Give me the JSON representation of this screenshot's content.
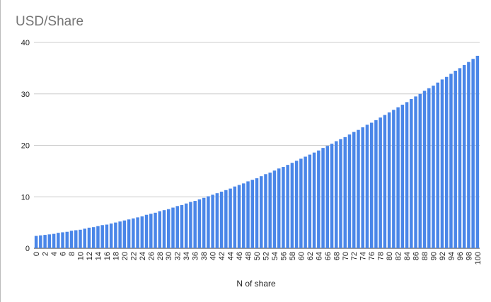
{
  "chart_data": {
    "type": "bar",
    "title": "USD/Share",
    "x_label": "N of share",
    "categories": [
      "0",
      null,
      "2",
      null,
      "4",
      null,
      "6",
      null,
      "8",
      null,
      "10",
      null,
      "12",
      null,
      "14",
      null,
      "16",
      null,
      "18",
      null,
      "20",
      null,
      "22",
      null,
      "24",
      null,
      "26",
      null,
      "28",
      null,
      "30",
      null,
      "32",
      null,
      "34",
      null,
      "36",
      null,
      "38",
      null,
      "40",
      null,
      "42",
      null,
      "44",
      null,
      "46",
      null,
      "48",
      null,
      "50",
      null,
      "52",
      null,
      "54",
      null,
      "56",
      null,
      "58",
      null,
      "60",
      null,
      "62",
      null,
      "64",
      null,
      "66",
      null,
      "68",
      null,
      "70",
      null,
      "72",
      null,
      "74",
      null,
      "76",
      null,
      "78",
      null,
      "80",
      null,
      "82",
      null,
      "84",
      null,
      "86",
      null,
      "88",
      null,
      "90",
      null,
      "92",
      null,
      "94",
      null,
      "96",
      null,
      "98",
      null,
      "100"
    ],
    "values": [
      2.4,
      2.5,
      2.6,
      2.7,
      2.8,
      3.0,
      3.1,
      3.2,
      3.4,
      3.5,
      3.6,
      3.8,
      4.0,
      4.1,
      4.3,
      4.5,
      4.6,
      4.8,
      5.0,
      5.2,
      5.4,
      5.6,
      5.8,
      6.0,
      6.2,
      6.5,
      6.7,
      6.9,
      7.2,
      7.4,
      7.6,
      7.9,
      8.2,
      8.4,
      8.7,
      9.0,
      9.2,
      9.5,
      9.8,
      10.1,
      10.4,
      10.7,
      11.0,
      11.3,
      11.6,
      12.0,
      12.3,
      12.6,
      13.0,
      13.3,
      13.6,
      14.0,
      14.4,
      14.7,
      15.1,
      15.5,
      15.8,
      16.2,
      16.6,
      17.0,
      17.4,
      17.8,
      18.2,
      18.6,
      19.0,
      19.5,
      19.9,
      20.3,
      20.8,
      21.2,
      21.6,
      22.1,
      22.6,
      23.0,
      23.5,
      24.0,
      24.4,
      24.9,
      25.4,
      25.9,
      26.4,
      26.9,
      27.4,
      27.9,
      28.4,
      29.0,
      29.5,
      30.0,
      30.6,
      31.1,
      31.6,
      32.2,
      32.8,
      33.3,
      33.9,
      34.5,
      35.0,
      35.6,
      36.2,
      36.8,
      37.4
    ],
    "color": "#4a86e8",
    "ylim": [
      0,
      40
    ],
    "yticks": [
      0,
      10,
      20,
      30,
      40
    ],
    "grid": true
  }
}
